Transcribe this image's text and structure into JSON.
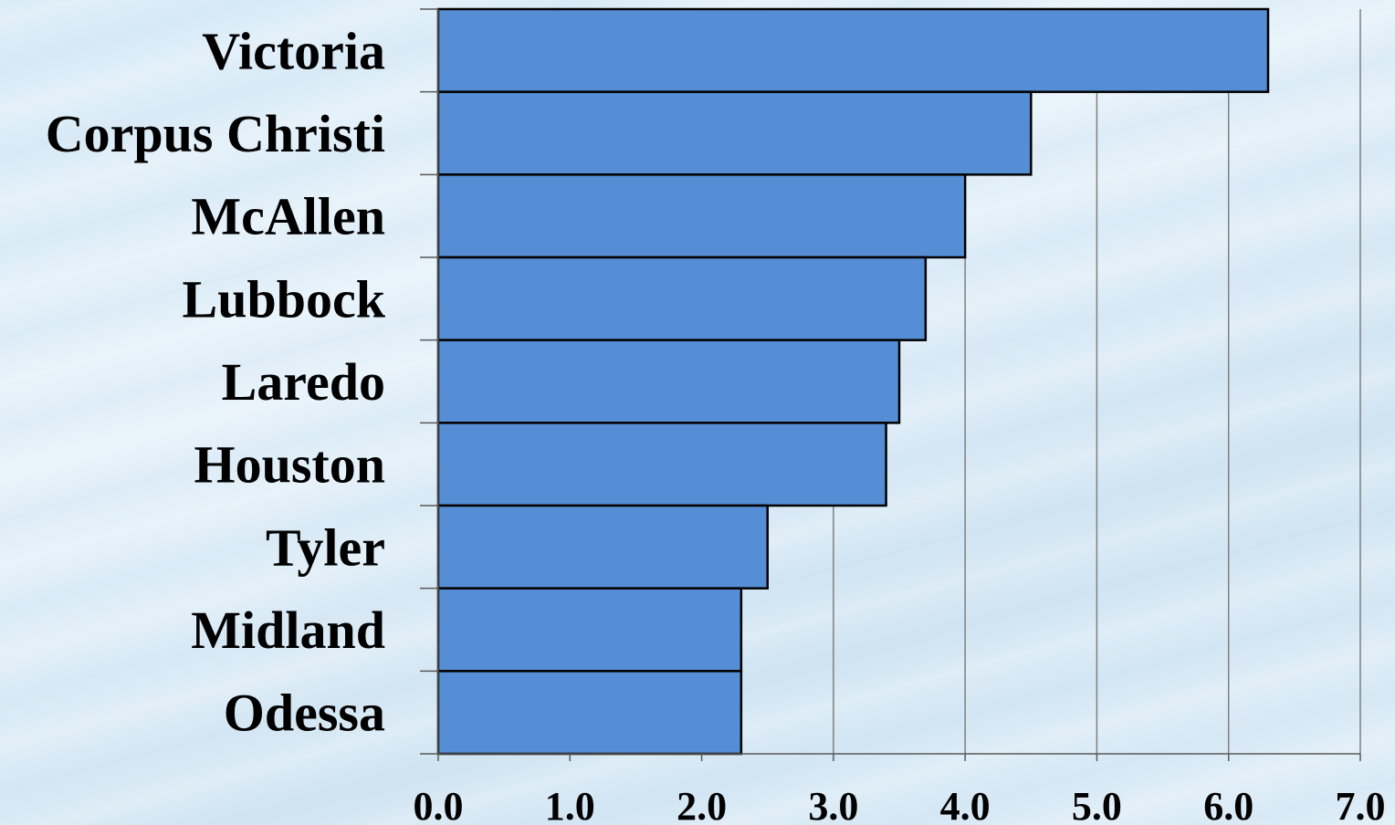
{
  "chart_data": {
    "type": "bar",
    "orientation": "horizontal",
    "categories": [
      "Victoria",
      "Corpus Christi",
      "McAllen",
      "Lubbock",
      "Laredo",
      "Houston",
      "Tyler",
      "Midland",
      "Odessa"
    ],
    "values": [
      6.3,
      4.5,
      4.0,
      3.7,
      3.5,
      3.4,
      2.5,
      2.3,
      2.3
    ],
    "x_ticks": [
      "0.0",
      "1.0",
      "2.0",
      "3.0",
      "4.0",
      "5.0",
      "6.0",
      "7.0"
    ],
    "xlim": [
      0,
      7
    ],
    "title": "",
    "xlabel": "",
    "ylabel": "",
    "grid": "vertical",
    "legend": "none",
    "colors": {
      "bar_fill": "#558ed5",
      "bar_stroke": "#000000",
      "grid": "#7f7f7f",
      "axis": "#595959"
    }
  }
}
